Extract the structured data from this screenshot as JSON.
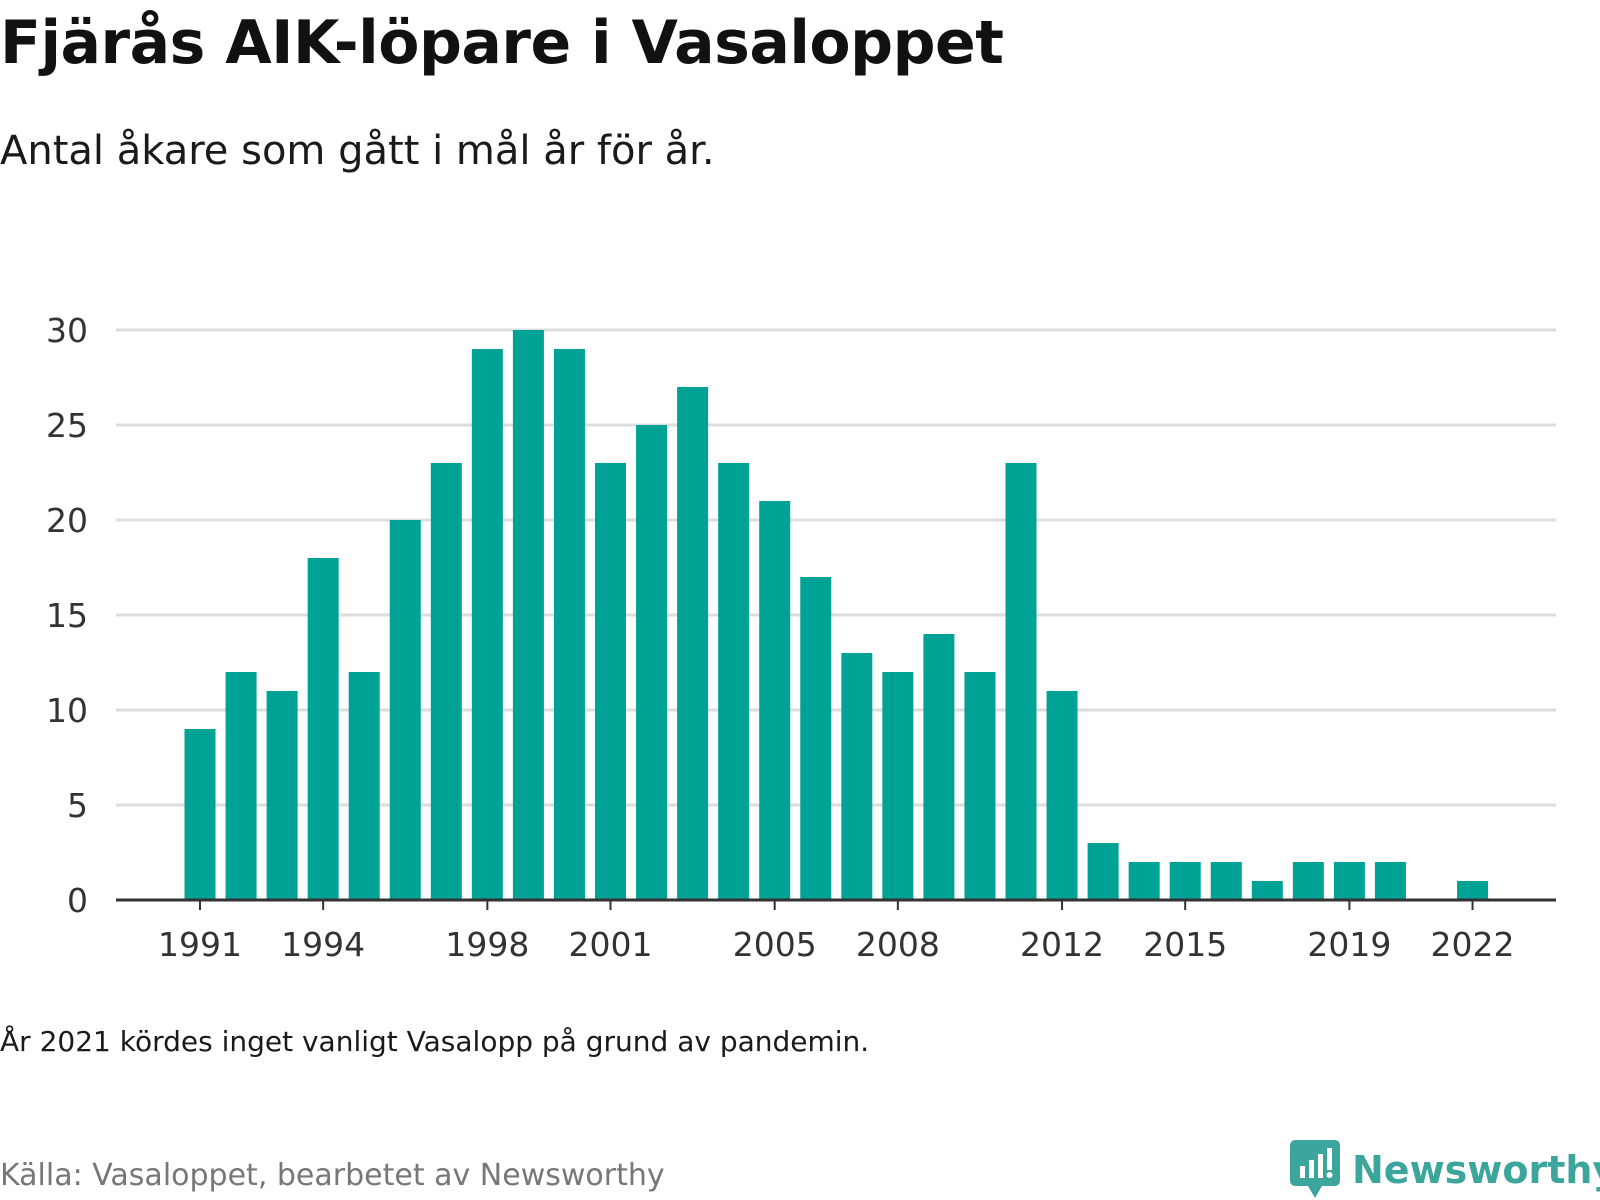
{
  "title": "Fjärås AIK-löpare i Vasaloppet",
  "subtitle": "Antal åkare som gått i mål år för år.",
  "note": "År 2021 kördes inget vanligt Vasalopp på grund av pandemin.",
  "source": "Källa: Vasaloppet, bearbetet av Newsworthy",
  "brand": {
    "name": "Newsworthy",
    "icon": "newsworthy-logo-icon",
    "color": "#3ca59c"
  },
  "colors": {
    "bar": "#00a296",
    "grid": "#dddddd",
    "axis": "#333333"
  },
  "chart_data": {
    "type": "bar",
    "categories": [
      1991,
      1992,
      1993,
      1994,
      1995,
      1996,
      1997,
      1998,
      1999,
      2000,
      2001,
      2002,
      2003,
      2004,
      2005,
      2006,
      2007,
      2008,
      2009,
      2010,
      2011,
      2012,
      2013,
      2014,
      2015,
      2016,
      2017,
      2018,
      2019,
      2020,
      2021,
      2022
    ],
    "values": [
      9,
      12,
      11,
      18,
      12,
      20,
      23,
      29,
      30,
      29,
      23,
      25,
      27,
      23,
      21,
      17,
      13,
      12,
      14,
      12,
      23,
      11,
      3,
      2,
      2,
      2,
      1,
      2,
      2,
      2,
      null,
      1
    ],
    "xticks": [
      1991,
      1994,
      1998,
      2001,
      2005,
      2008,
      2012,
      2015,
      2019,
      2022
    ],
    "yticks": [
      0,
      5,
      10,
      15,
      20,
      25,
      30
    ],
    "ylim": [
      0,
      30
    ],
    "grid": true,
    "xlabel": "",
    "ylabel": ""
  }
}
